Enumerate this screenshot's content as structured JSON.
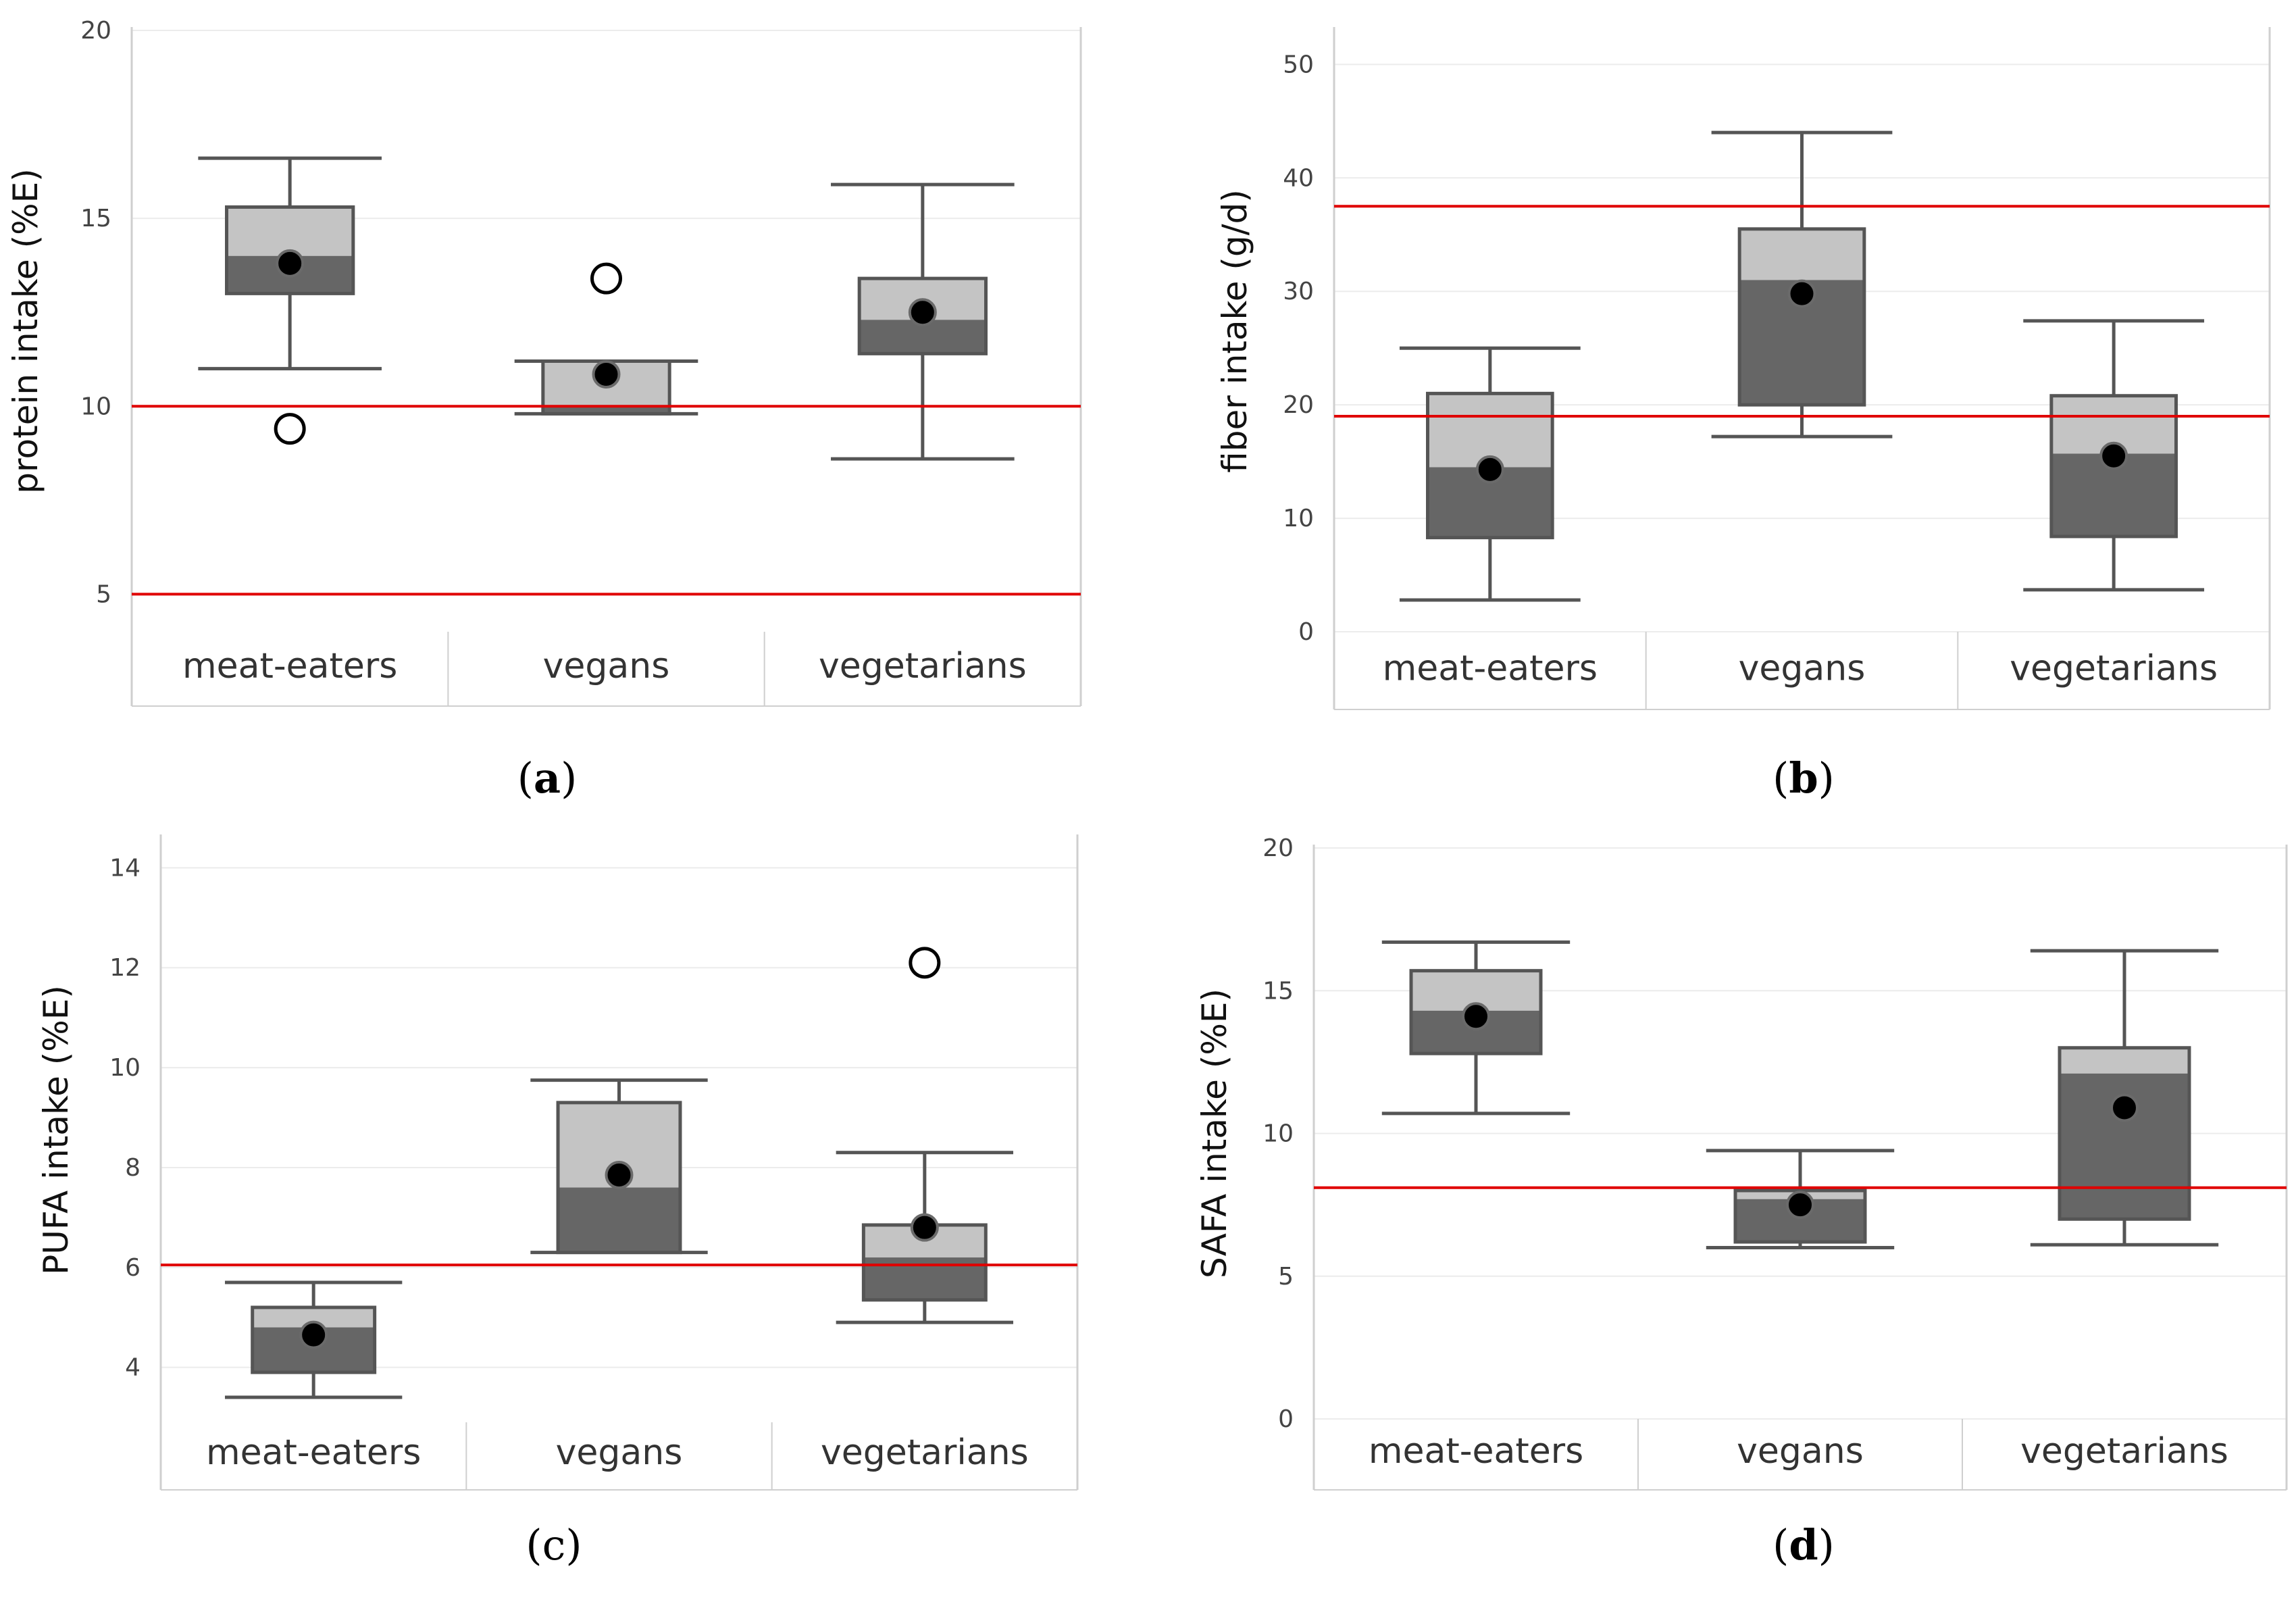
{
  "colors": {
    "upper_box": "#c4c4c4",
    "lower_box": "#666666",
    "outline": "#555555",
    "reference_line": "#e00000",
    "grid": "#ececec",
    "frame": "#cfcfcf",
    "mean_dot": "#000000",
    "outlier": "#000000"
  },
  "chart_data": [
    {
      "id": "a",
      "type": "box",
      "caption": "a",
      "ylabel": "protein intake (%E)",
      "ylim": [
        4,
        20
      ],
      "yticks": [
        5,
        10,
        15,
        20
      ],
      "categories": [
        "meat-eaters",
        "vegans",
        "vegetarians"
      ],
      "boxes": [
        {
          "min": 11.0,
          "q1": 13.0,
          "median": 14.0,
          "q3": 15.3,
          "max": 16.6,
          "mean": 13.8
        },
        {
          "min": 9.8,
          "q1": 9.8,
          "median": 10.0,
          "q3": 11.2,
          "max": 11.2,
          "mean": 10.85
        },
        {
          "min": 8.6,
          "q1": 11.4,
          "median": 12.3,
          "q3": 13.4,
          "max": 15.9,
          "mean": 12.5
        }
      ],
      "outliers": [
        [
          9.4
        ],
        [
          13.4
        ],
        []
      ],
      "reference_lines": [
        10,
        5
      ]
    },
    {
      "id": "b",
      "type": "box",
      "caption": "b",
      "ylabel": "fiber intake (g/d)",
      "ylim": [
        0,
        53
      ],
      "yticks": [
        0,
        10,
        20,
        30,
        40,
        50
      ],
      "categories": [
        "meat-eaters",
        "vegans",
        "vegetarians"
      ],
      "boxes": [
        {
          "min": 2.8,
          "q1": 8.3,
          "median": 14.5,
          "q3": 21.0,
          "max": 25.0,
          "mean": 14.3
        },
        {
          "min": 17.2,
          "q1": 20.0,
          "median": 31.0,
          "q3": 35.5,
          "max": 44.0,
          "mean": 29.8
        },
        {
          "min": 3.7,
          "q1": 8.4,
          "median": 15.7,
          "q3": 20.8,
          "max": 27.4,
          "mean": 15.5
        }
      ],
      "outliers": [
        [],
        [],
        []
      ],
      "reference_lines": [
        37.5,
        19
      ]
    },
    {
      "id": "c",
      "type": "box",
      "caption": "c",
      "ylabel": "PUFA intake (%E)",
      "ylim": [
        2.9,
        14.6
      ],
      "yticks": [
        4,
        6,
        8,
        10,
        12,
        14
      ],
      "categories": [
        "meat-eaters",
        "vegans",
        "vegetarians"
      ],
      "boxes": [
        {
          "min": 3.4,
          "q1": 3.9,
          "median": 4.8,
          "q3": 5.2,
          "max": 5.7,
          "mean": 4.65
        },
        {
          "min": 6.3,
          "q1": 6.3,
          "median": 7.6,
          "q3": 9.3,
          "max": 9.75,
          "mean": 7.85
        },
        {
          "min": 4.9,
          "q1": 5.35,
          "median": 6.2,
          "q3": 6.85,
          "max": 8.3,
          "mean": 6.8
        }
      ],
      "outliers": [
        [],
        [],
        [
          12.1
        ]
      ],
      "reference_lines": [
        6.05
      ]
    },
    {
      "id": "d",
      "type": "box",
      "caption": "d",
      "ylabel": "SAFA intake (%E)",
      "ylim": [
        0,
        20
      ],
      "yticks": [
        0,
        5,
        10,
        15,
        20
      ],
      "categories": [
        "meat-eaters",
        "vegans",
        "vegetarians"
      ],
      "boxes": [
        {
          "min": 10.7,
          "q1": 12.8,
          "median": 14.3,
          "q3": 15.7,
          "max": 16.7,
          "mean": 14.1
        },
        {
          "min": 6.0,
          "q1": 6.2,
          "median": 7.7,
          "q3": 8.0,
          "max": 9.4,
          "mean": 7.5
        },
        {
          "min": 6.1,
          "q1": 7.0,
          "median": 12.1,
          "q3": 13.0,
          "max": 16.4,
          "mean": 10.9
        }
      ],
      "outliers": [
        [],
        [],
        []
      ],
      "reference_lines": [
        8.1
      ]
    }
  ]
}
